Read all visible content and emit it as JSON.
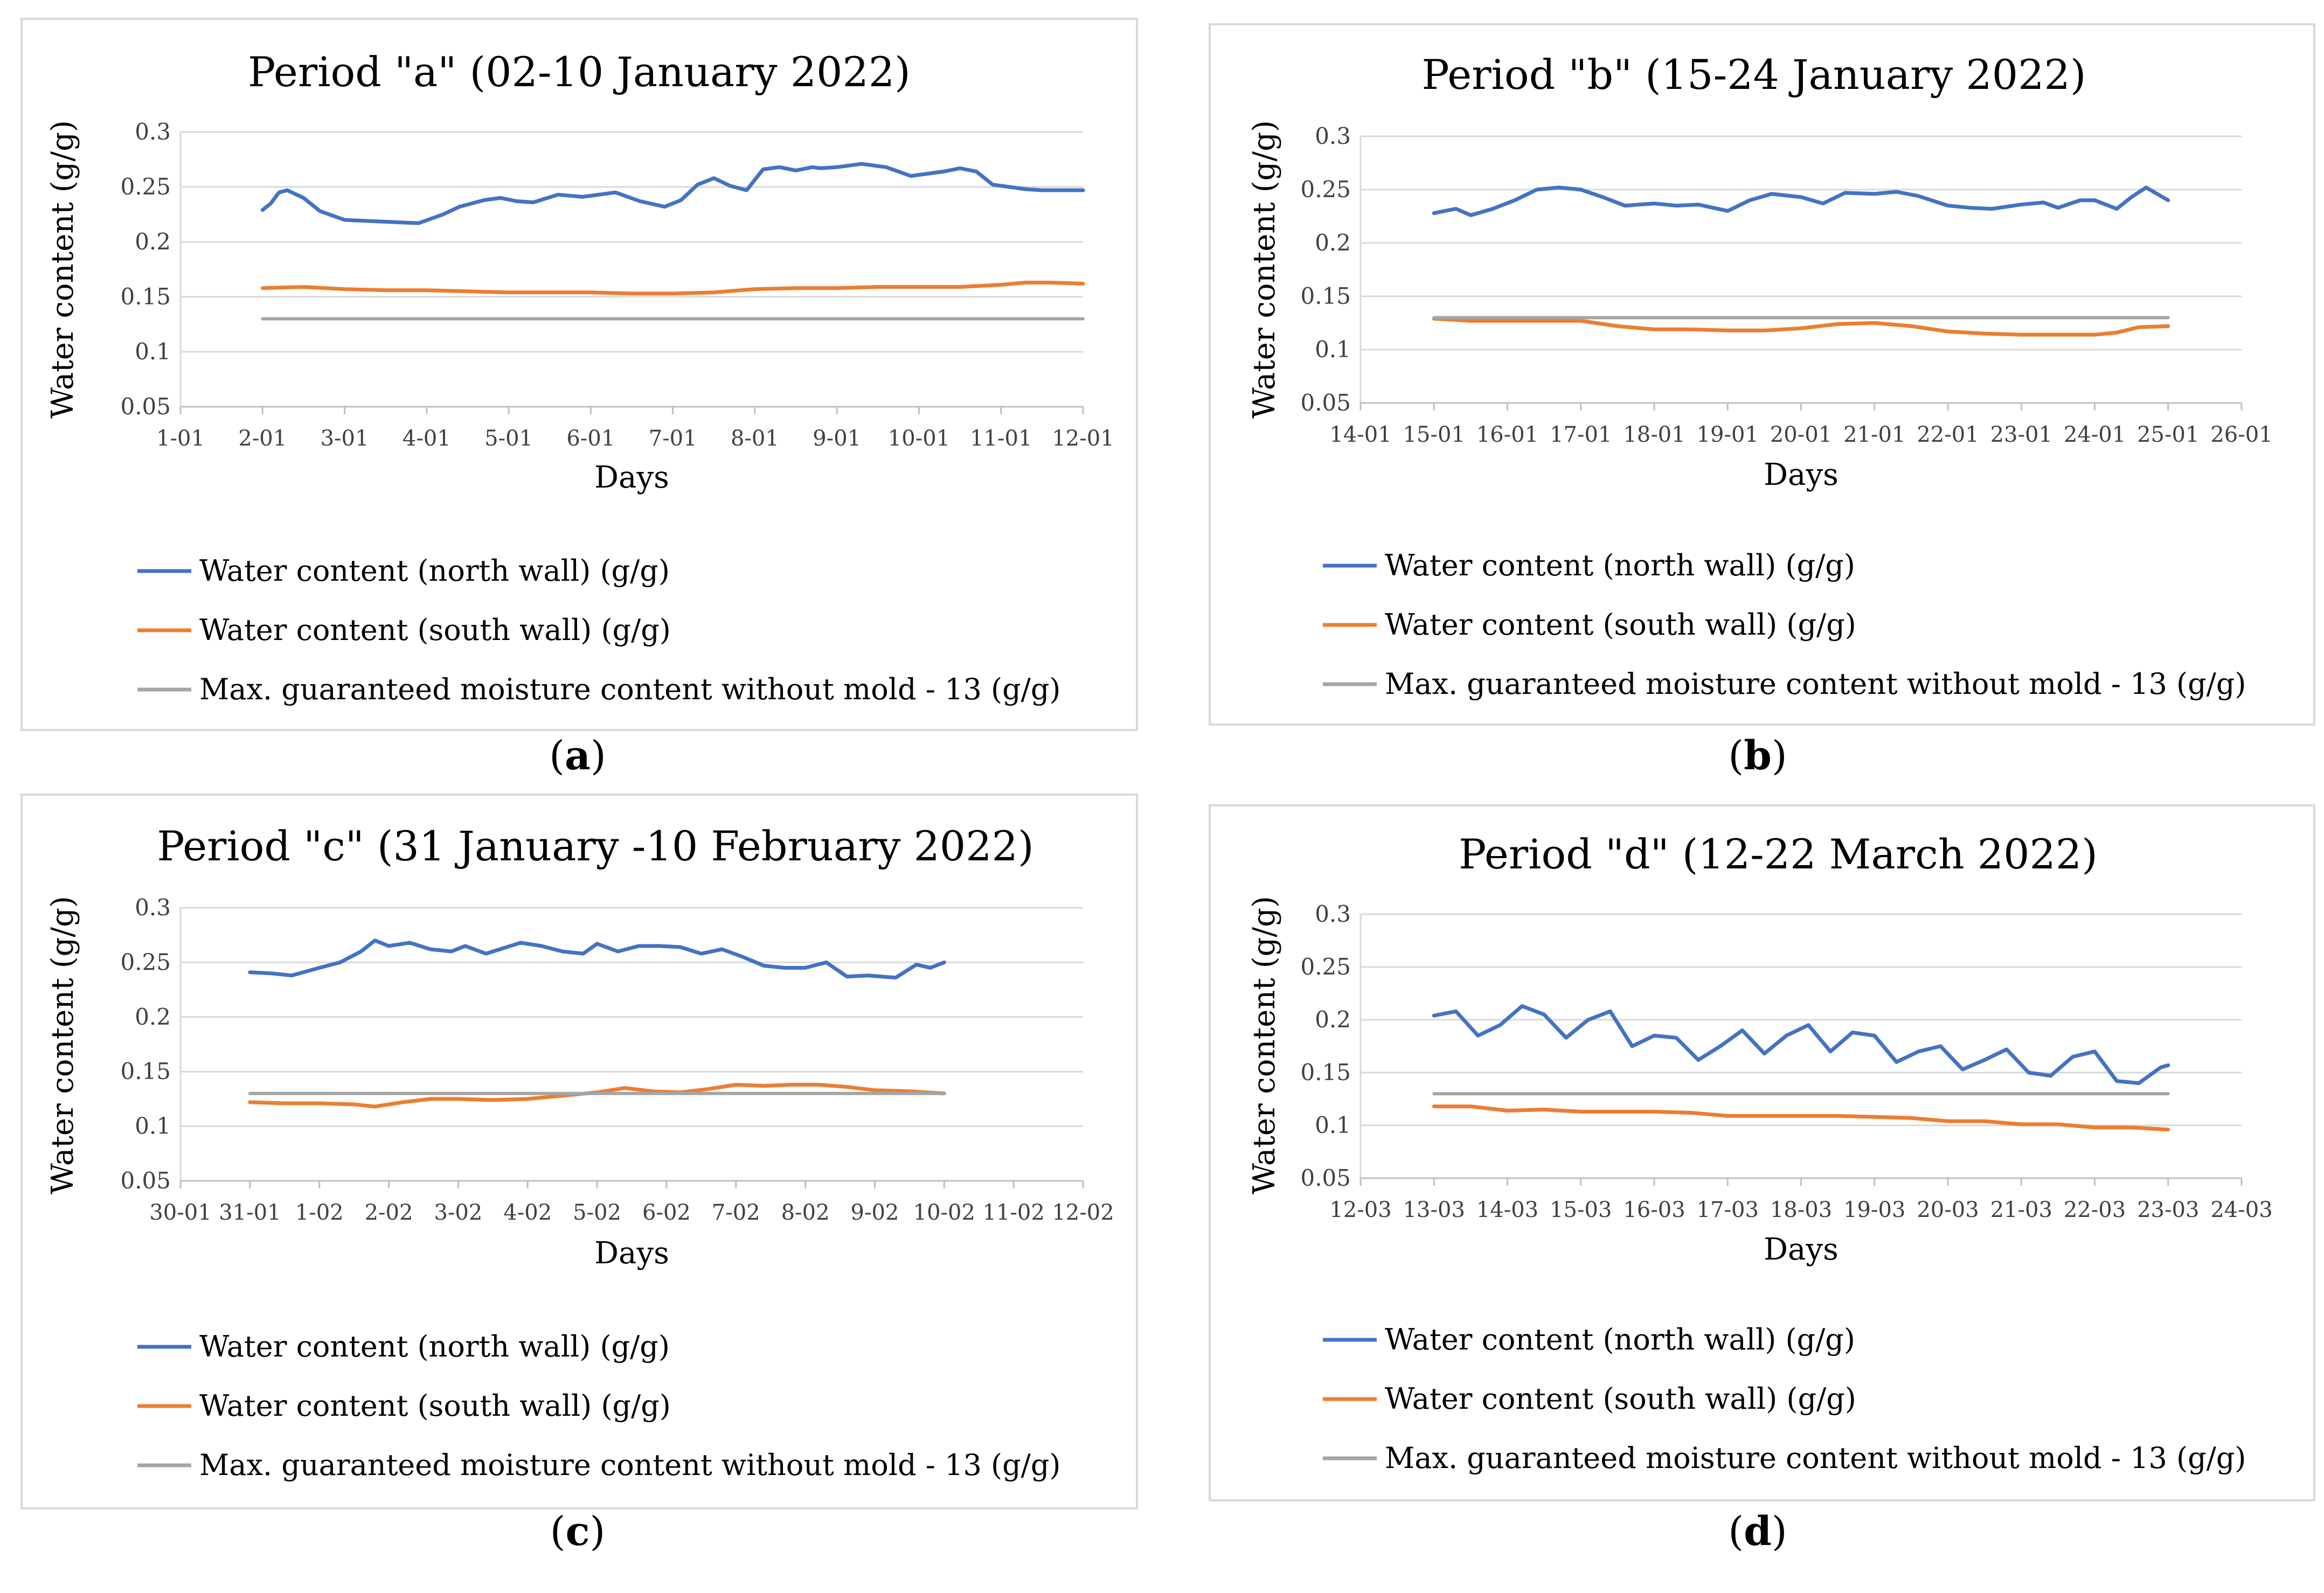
{
  "legend": {
    "north": "Water content (north wall) (g/g)",
    "south": "Water content (south wall) (g/g)",
    "limit": "Max. guaranteed moisture content without mold - 13 (g/g)"
  },
  "colors": {
    "north": "#4472C4",
    "south": "#ED7D31",
    "limit": "#A5A5A5",
    "grid": "#D9D9D9",
    "frame": "#D9D9D9"
  },
  "chart_data": [
    {
      "id": "a",
      "caption_pre": "(",
      "caption_letter": "a",
      "caption_post": ")",
      "type": "line",
      "title": "Period \"a\" (02-10 January 2022)",
      "xlabel": "Days",
      "ylabel": "Water content (g/g)",
      "ylim": [
        0.05,
        0.3
      ],
      "yticks": [
        "0.05",
        "0.1",
        "0.15",
        "0.2",
        "0.25",
        "0.3"
      ],
      "xticks": [
        "1-01",
        "2-01",
        "3-01",
        "4-01",
        "5-01",
        "6-01",
        "7-01",
        "8-01",
        "9-01",
        "10-01",
        "11-01",
        "12-01"
      ],
      "series": [
        {
          "name": "Water content (north wall) (g/g)",
          "key": "north",
          "x": [
            1,
            1.1,
            1.2,
            1.3,
            1.5,
            1.7,
            2,
            2.3,
            2.6,
            2.9,
            3.2,
            3.4,
            3.7,
            3.9,
            4.1,
            4.3,
            4.6,
            4.9,
            5.1,
            5.3,
            5.6,
            5.9,
            6.1,
            6.3,
            6.5,
            6.7,
            6.9,
            7.1,
            7.3,
            7.5,
            7.7,
            7.8,
            8,
            8.3,
            8.6,
            8.9,
            9.1,
            9.3,
            9.5,
            9.7,
            9.9,
            10.1,
            10.3,
            10.5,
            10.7,
            11
          ],
          "y": [
            0.229,
            0.235,
            0.245,
            0.247,
            0.24,
            0.228,
            0.22,
            0.219,
            0.218,
            0.217,
            0.225,
            0.232,
            0.238,
            0.24,
            0.237,
            0.236,
            0.243,
            0.241,
            0.243,
            0.245,
            0.237,
            0.232,
            0.238,
            0.252,
            0.258,
            0.251,
            0.247,
            0.266,
            0.268,
            0.265,
            0.268,
            0.267,
            0.268,
            0.271,
            0.268,
            0.26,
            0.262,
            0.264,
            0.267,
            0.264,
            0.252,
            0.25,
            0.248,
            0.247,
            0.247,
            0.247
          ]
        },
        {
          "name": "Water content (south wall) (g/g)",
          "key": "south",
          "x": [
            1,
            1.5,
            2,
            2.5,
            3,
            3.5,
            4,
            4.5,
            5,
            5.5,
            6,
            6.5,
            7,
            7.5,
            8,
            8.5,
            9,
            9.5,
            10,
            10.3,
            10.6,
            11
          ],
          "y": [
            0.158,
            0.159,
            0.157,
            0.156,
            0.156,
            0.155,
            0.154,
            0.154,
            0.154,
            0.153,
            0.153,
            0.154,
            0.157,
            0.158,
            0.158,
            0.159,
            0.159,
            0.159,
            0.161,
            0.163,
            0.163,
            0.162
          ]
        },
        {
          "name": "Max. guaranteed moisture content without mold - 13 (g/g)",
          "key": "limit",
          "x": [
            1,
            11
          ],
          "y": [
            0.13,
            0.13
          ]
        }
      ]
    },
    {
      "id": "b",
      "caption_pre": "(",
      "caption_letter": "b",
      "caption_post": ")",
      "type": "line",
      "title": "Period \"b\" (15-24 January 2022)",
      "xlabel": "Days",
      "ylabel": "Water content (g/g)",
      "ylim": [
        0.05,
        0.3
      ],
      "yticks": [
        "0.05",
        "0.1",
        "0.15",
        "0.2",
        "0.25",
        "0.3"
      ],
      "xticks": [
        "14-01",
        "15-01",
        "16-01",
        "17-01",
        "18-01",
        "19-01",
        "20-01",
        "21-01",
        "22-01",
        "23-01",
        "24-01",
        "25-01",
        "26-01"
      ],
      "series": [
        {
          "name": "Water content (north wall) (g/g)",
          "key": "north",
          "x": [
            1,
            1.3,
            1.5,
            1.8,
            2.1,
            2.4,
            2.7,
            3,
            3.3,
            3.6,
            4,
            4.3,
            4.6,
            5,
            5.3,
            5.6,
            6,
            6.3,
            6.6,
            7,
            7.3,
            7.6,
            8,
            8.3,
            8.6,
            9,
            9.3,
            9.5,
            9.8,
            10,
            10.3,
            10.5,
            10.7,
            11
          ],
          "y": [
            0.228,
            0.232,
            0.226,
            0.232,
            0.24,
            0.25,
            0.252,
            0.25,
            0.243,
            0.235,
            0.237,
            0.235,
            0.236,
            0.23,
            0.24,
            0.246,
            0.243,
            0.237,
            0.247,
            0.246,
            0.248,
            0.244,
            0.235,
            0.233,
            0.232,
            0.236,
            0.238,
            0.233,
            0.24,
            0.24,
            0.232,
            0.243,
            0.252,
            0.24
          ]
        },
        {
          "name": "Water content (south wall) (g/g)",
          "key": "south",
          "x": [
            1,
            1.5,
            2,
            2.5,
            3,
            3.5,
            4,
            4.5,
            5,
            5.5,
            6,
            6.5,
            7,
            7.5,
            8,
            8.5,
            9,
            9.5,
            10,
            10.3,
            10.6,
            11
          ],
          "y": [
            0.129,
            0.127,
            0.127,
            0.127,
            0.127,
            0.122,
            0.119,
            0.119,
            0.118,
            0.118,
            0.12,
            0.124,
            0.125,
            0.122,
            0.117,
            0.115,
            0.114,
            0.114,
            0.114,
            0.116,
            0.121,
            0.122
          ]
        },
        {
          "name": "Max. guaranteed moisture content without mold - 13 (g/g)",
          "key": "limit",
          "x": [
            1,
            11
          ],
          "y": [
            0.13,
            0.13
          ]
        }
      ]
    },
    {
      "id": "c",
      "caption_pre": "(",
      "caption_letter": "c",
      "caption_post": ")",
      "type": "line",
      "title": "Period \"c\" (31 January -10 February 2022)",
      "xlabel": "Days",
      "ylabel": "Water content (g/g)",
      "ylim": [
        0.05,
        0.3
      ],
      "yticks": [
        "0.05",
        "0.1",
        "0.15",
        "0.2",
        "0.25",
        "0.3"
      ],
      "xticks": [
        "30-01",
        "31-01",
        "1-02",
        "2-02",
        "3-02",
        "4-02",
        "5-02",
        "6-02",
        "7-02",
        "8-02",
        "9-02",
        "10-02",
        "11-02",
        "12-02"
      ],
      "series": [
        {
          "name": "Water content (north wall) (g/g)",
          "key": "north",
          "x": [
            1,
            1.3,
            1.6,
            2,
            2.3,
            2.6,
            2.8,
            3,
            3.3,
            3.6,
            3.9,
            4.1,
            4.4,
            4.6,
            4.9,
            5.2,
            5.5,
            5.8,
            6,
            6.3,
            6.6,
            6.9,
            7.2,
            7.5,
            7.8,
            8.1,
            8.4,
            8.7,
            9,
            9.3,
            9.6,
            9.9,
            10.1,
            10.3,
            10.6,
            10.8,
            11
          ],
          "y": [
            0.241,
            0.24,
            0.238,
            0.245,
            0.25,
            0.26,
            0.27,
            0.265,
            0.268,
            0.262,
            0.26,
            0.265,
            0.258,
            0.262,
            0.268,
            0.265,
            0.26,
            0.258,
            0.267,
            0.26,
            0.265,
            0.265,
            0.264,
            0.258,
            0.262,
            0.255,
            0.247,
            0.245,
            0.245,
            0.25,
            0.237,
            0.238,
            0.237,
            0.236,
            0.248,
            0.245,
            0.25
          ]
        },
        {
          "name": "Water content (south wall) (g/g)",
          "key": "south",
          "x": [
            1,
            1.5,
            2,
            2.5,
            2.8,
            3.2,
            3.6,
            4,
            4.5,
            5,
            5.5,
            6,
            6.4,
            6.8,
            7.2,
            7.6,
            8,
            8.4,
            8.8,
            9.2,
            9.6,
            10,
            10.5,
            11
          ],
          "y": [
            0.122,
            0.121,
            0.121,
            0.12,
            0.118,
            0.122,
            0.125,
            0.125,
            0.124,
            0.125,
            0.128,
            0.131,
            0.135,
            0.132,
            0.131,
            0.134,
            0.138,
            0.137,
            0.138,
            0.138,
            0.136,
            0.133,
            0.132,
            0.13
          ]
        },
        {
          "name": "Max. guaranteed moisture content without mold - 13 (g/g)",
          "key": "limit",
          "x": [
            1,
            11
          ],
          "y": [
            0.13,
            0.13
          ]
        }
      ]
    },
    {
      "id": "d",
      "caption_pre": "(",
      "caption_letter": "d",
      "caption_post": ")",
      "type": "line",
      "title": "Period \"d\" (12-22 March 2022)",
      "xlabel": "Days",
      "ylabel": "Water content (g/g)",
      "ylim": [
        0.05,
        0.3
      ],
      "yticks": [
        "0.05",
        "0.1",
        "0.15",
        "0.2",
        "0.25",
        "0.3"
      ],
      "xticks": [
        "12-03",
        "13-03",
        "14-03",
        "15-03",
        "16-03",
        "17-03",
        "18-03",
        "19-03",
        "20-03",
        "21-03",
        "22-03",
        "23-03",
        "24-03"
      ],
      "series": [
        {
          "name": "Water content (north wall) (g/g)",
          "key": "north",
          "x": [
            1,
            1.3,
            1.6,
            1.9,
            2.2,
            2.5,
            2.8,
            3.1,
            3.4,
            3.7,
            4,
            4.3,
            4.6,
            4.9,
            5.2,
            5.5,
            5.8,
            6.1,
            6.4,
            6.7,
            7,
            7.3,
            7.6,
            7.9,
            8.2,
            8.5,
            8.8,
            9.1,
            9.4,
            9.7,
            10,
            10.3,
            10.6,
            10.9,
            11
          ],
          "y": [
            0.204,
            0.208,
            0.185,
            0.195,
            0.213,
            0.205,
            0.183,
            0.2,
            0.208,
            0.175,
            0.185,
            0.183,
            0.162,
            0.175,
            0.19,
            0.168,
            0.185,
            0.195,
            0.17,
            0.188,
            0.185,
            0.16,
            0.17,
            0.175,
            0.153,
            0.162,
            0.172,
            0.15,
            0.147,
            0.165,
            0.17,
            0.142,
            0.14,
            0.155,
            0.157
          ]
        },
        {
          "name": "Water content (south wall) (g/g)",
          "key": "south",
          "x": [
            1,
            1.5,
            2,
            2.5,
            3,
            3.5,
            4,
            4.5,
            5,
            5.5,
            6,
            6.5,
            7,
            7.5,
            8,
            8.5,
            9,
            9.5,
            10,
            10.5,
            11
          ],
          "y": [
            0.118,
            0.118,
            0.114,
            0.115,
            0.113,
            0.113,
            0.113,
            0.112,
            0.109,
            0.109,
            0.109,
            0.109,
            0.108,
            0.107,
            0.104,
            0.104,
            0.101,
            0.101,
            0.098,
            0.098,
            0.096
          ]
        },
        {
          "name": "Max. guaranteed moisture content without mold - 13 (g/g)",
          "key": "limit",
          "x": [
            1,
            11
          ],
          "y": [
            0.13,
            0.13
          ]
        }
      ]
    }
  ]
}
